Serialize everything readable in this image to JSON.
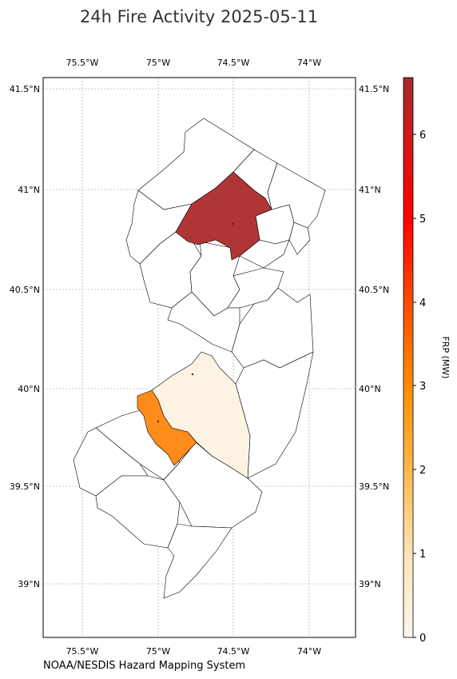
{
  "title": "24h Fire Activity 2025-05-11",
  "credit": "NOAA/NESDIS Hazard Mapping System",
  "map": {
    "lon_ticks": [
      "75.5°W",
      "75°W",
      "74.5°W",
      "74°W"
    ],
    "lat_ticks": [
      "41.5°N",
      "41°N",
      "40.5°N",
      "40°N",
      "39.5°N",
      "39°N"
    ],
    "grid": true
  },
  "colorbar": {
    "label": "FRP (MW)",
    "ticks": [
      "0",
      "1",
      "2",
      "3",
      "4",
      "5",
      "6"
    ],
    "range": [
      0,
      6.5
    ],
    "colors": [
      "#fff7ec",
      "#fdd49e",
      "#fdae2b",
      "#ff7f00",
      "#ff3300",
      "#ff0000",
      "#b22222"
    ]
  },
  "highlighted_regions": [
    {
      "frp": 6.5,
      "color": "#b03535"
    },
    {
      "frp": 3.0,
      "color": "#ff8c1a"
    },
    {
      "frp": 0.1,
      "color": "#fdf3e3"
    }
  ]
}
